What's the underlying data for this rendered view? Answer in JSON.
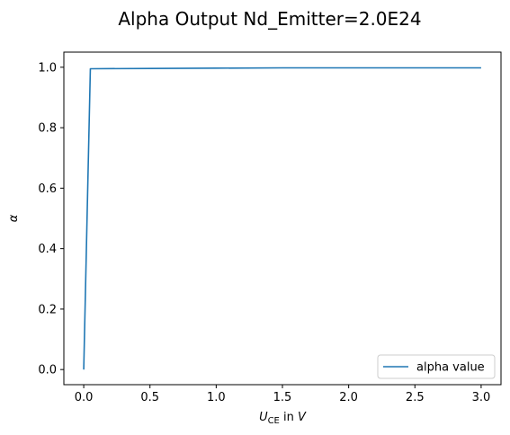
{
  "chart_data": {
    "type": "line",
    "title": "Alpha Output Nd_Emitter=2.0E24",
    "xlabel": {
      "symbol": "U",
      "subscript": "CE",
      "connector": " in ",
      "unit": "V"
    },
    "ylabel": "α",
    "xlim": [
      -0.15,
      3.15
    ],
    "ylim": [
      -0.05,
      1.05
    ],
    "xticks": [
      0.0,
      0.5,
      1.0,
      1.5,
      2.0,
      2.5,
      3.0
    ],
    "xtick_labels": [
      "0.0",
      "0.5",
      "1.0",
      "1.5",
      "2.0",
      "2.5",
      "3.0"
    ],
    "yticks": [
      0.0,
      0.2,
      0.4,
      0.6,
      0.8,
      1.0
    ],
    "ytick_labels": [
      "0.0",
      "0.2",
      "0.4",
      "0.6",
      "0.8",
      "1.0"
    ],
    "grid": false,
    "legend_position": "lower-right",
    "series": [
      {
        "name": "alpha value",
        "color": "#1f77b4",
        "x": [
          0.0,
          0.05,
          0.5,
          1.0,
          1.5,
          2.0,
          2.5,
          3.0
        ],
        "y": [
          0.0,
          0.995,
          0.996,
          0.997,
          0.998,
          0.998,
          0.998,
          0.998
        ]
      }
    ]
  }
}
